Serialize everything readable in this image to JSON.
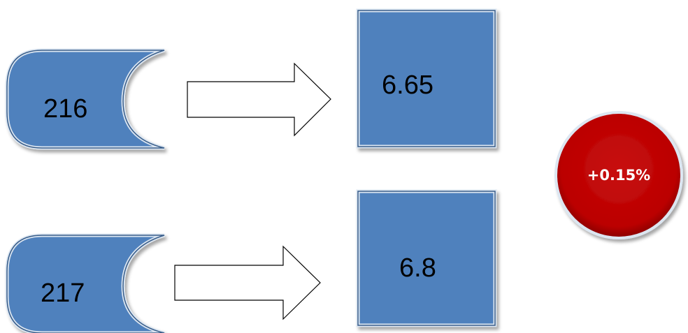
{
  "rows": [
    {
      "input": "216",
      "output": "6.65"
    },
    {
      "input": "217",
      "output": "6.8"
    }
  ],
  "change": "+0.15%",
  "colors": {
    "shape_fill": "#4f81bd",
    "shape_stroke": "#385d8a",
    "circle_fill": "#c00000",
    "arrow_fill": "#ffffff",
    "arrow_stroke": "#000000"
  }
}
